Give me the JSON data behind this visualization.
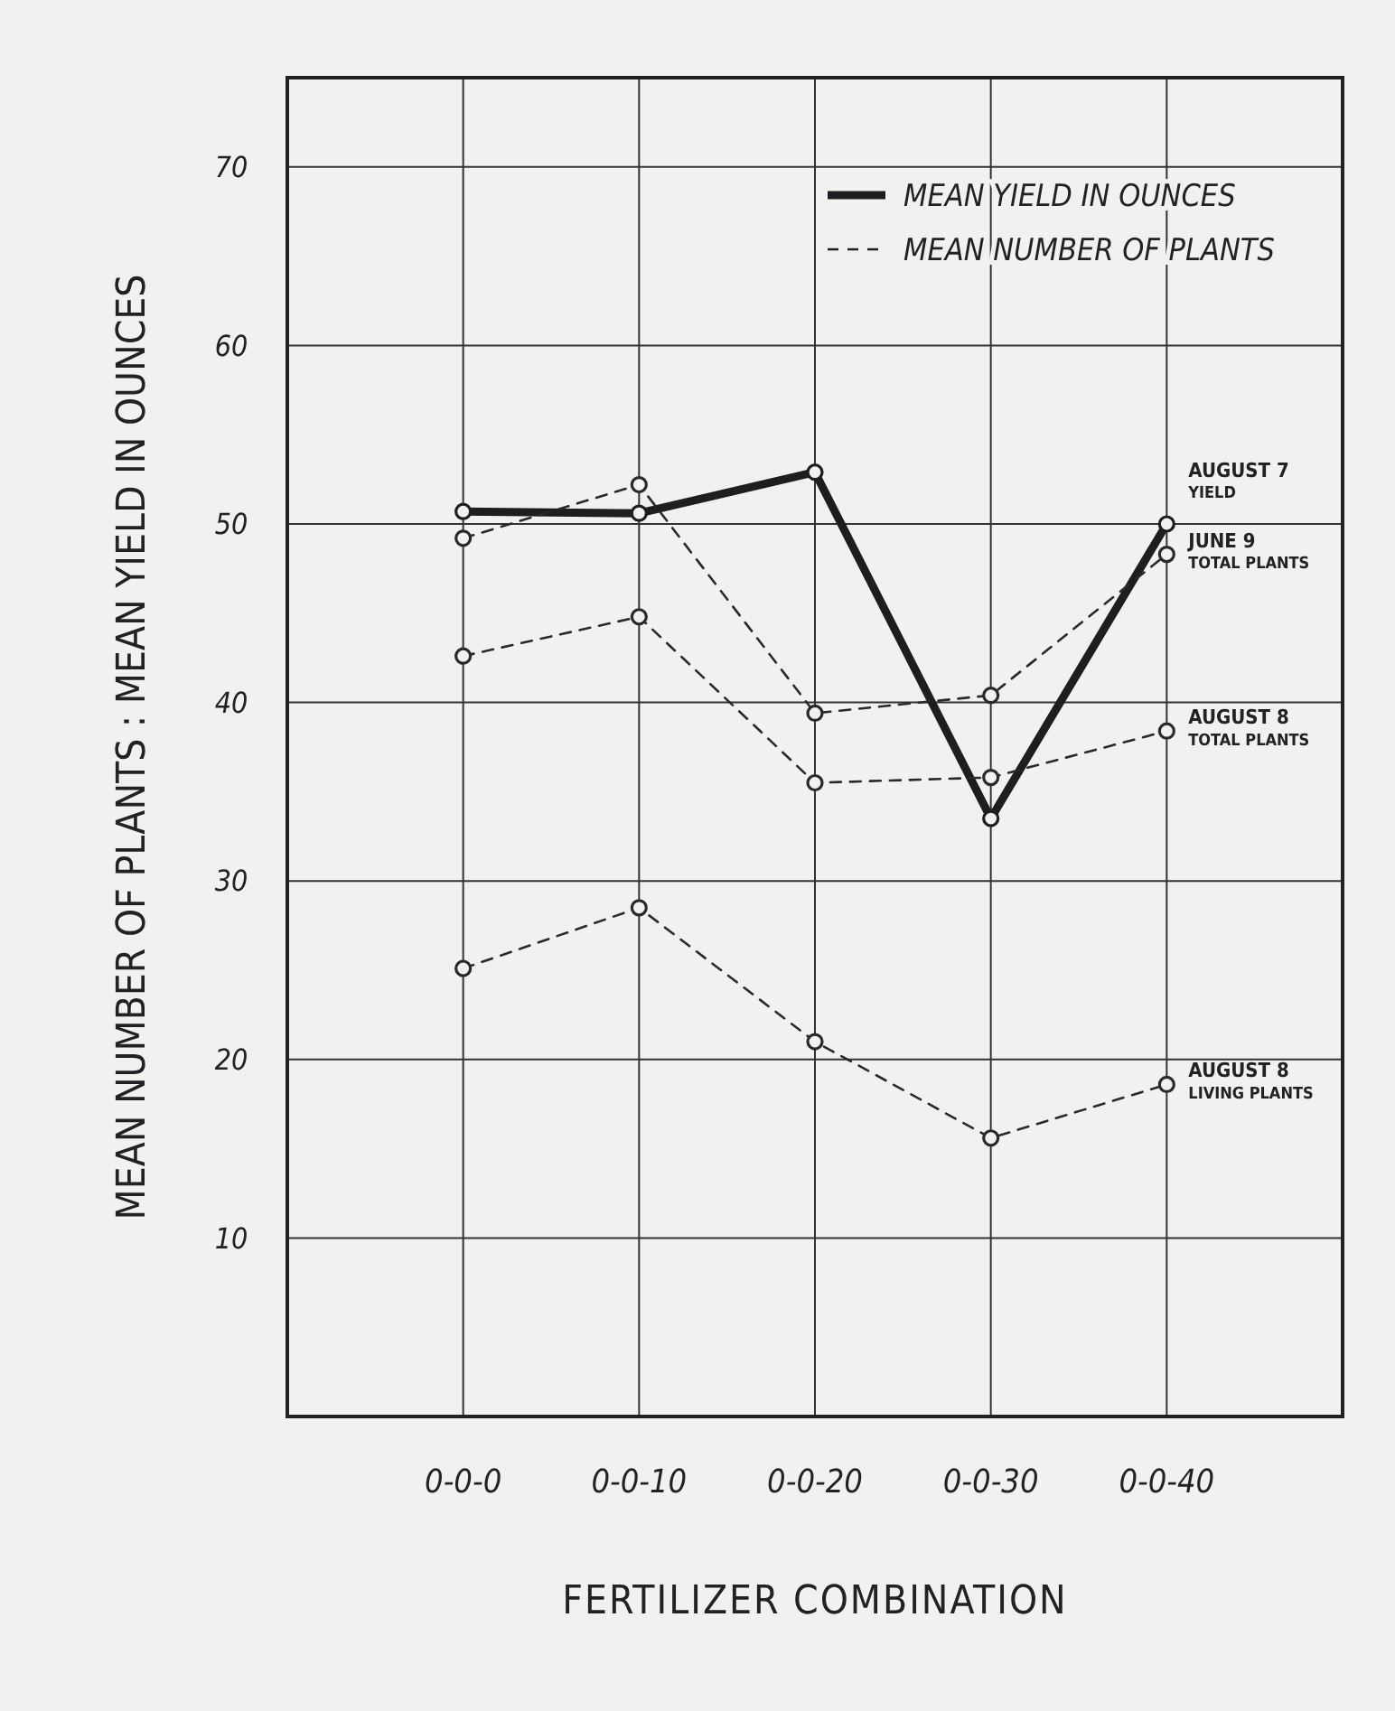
{
  "chart_data": {
    "type": "line",
    "xlabel": "FERTILIZER COMBINATION",
    "ylabel": "MEAN NUMBER OF PLANTS : MEAN YIELD IN OUNCES",
    "categories": [
      "0-0-0",
      "0-0-10",
      "0-0-20",
      "0-0-30",
      "0-0-40"
    ],
    "ylim": [
      0,
      75
    ],
    "yticks": [
      10,
      20,
      30,
      40,
      50,
      60,
      70
    ],
    "grid": true,
    "marker": "circle",
    "annotations": [
      "MEAN YIELD IN OUNCES",
      "MEAN NUMBER OF PLANTS"
    ],
    "series": [
      {
        "name": "AUGUST 7\nYIELD",
        "color": "#1e1e1e",
        "line_style": "solid",
        "values": [
          50.7,
          50.6,
          52.9,
          33.5,
          50.0
        ]
      },
      {
        "name": "JUNE 9\nTOTAL PLANTS",
        "color": "#2a2a2a",
        "line_style": "dashed",
        "values": [
          49.2,
          52.2,
          39.4,
          40.4,
          48.3
        ]
      },
      {
        "name": "AUGUST 8\nTOTAL PLANTS",
        "color": "#2a2a2a",
        "line_style": "dashed",
        "values": [
          42.6,
          44.8,
          35.5,
          35.8,
          38.4
        ]
      },
      {
        "name": "AUGUST 8\nLIVING PLANTS",
        "color": "#2a2a2a",
        "line_style": "dashed",
        "values": [
          25.1,
          28.5,
          21.0,
          15.6,
          18.6
        ]
      }
    ]
  }
}
